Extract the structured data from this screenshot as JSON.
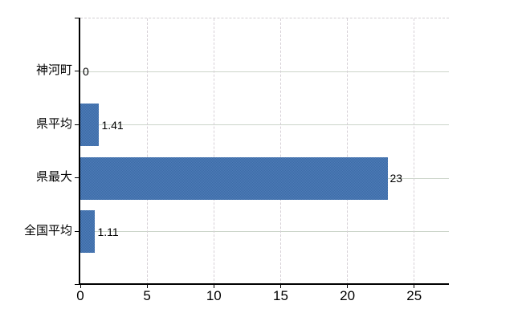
{
  "chart_data": {
    "type": "bar",
    "orientation": "horizontal",
    "title": "",
    "xlabel": "",
    "ylabel": "",
    "categories": [
      "神河町",
      "県平均",
      "県最大",
      "全国平均"
    ],
    "values": [
      0,
      1.41,
      23,
      1.11
    ],
    "value_labels": [
      "0",
      "1.41",
      "23",
      "1.11"
    ],
    "xlim": [
      0,
      27.6
    ],
    "xticks": [
      0,
      5,
      10,
      15,
      20,
      25
    ],
    "xtick_labels": [
      "0",
      "5",
      "10",
      "15",
      "20",
      "25"
    ],
    "grid": true,
    "legend": false,
    "colors": {
      "bar": "#4171ab",
      "bar_checker_dark": "#3c6ba6",
      "bar_checker_light": "#4e7cb8",
      "h_gridline": "#ccd5ca",
      "v_gridline": "#d6d0d6",
      "top_border": "#d2ced2",
      "axis": "#000000",
      "text": "#000000",
      "background": "#ffffff"
    }
  }
}
